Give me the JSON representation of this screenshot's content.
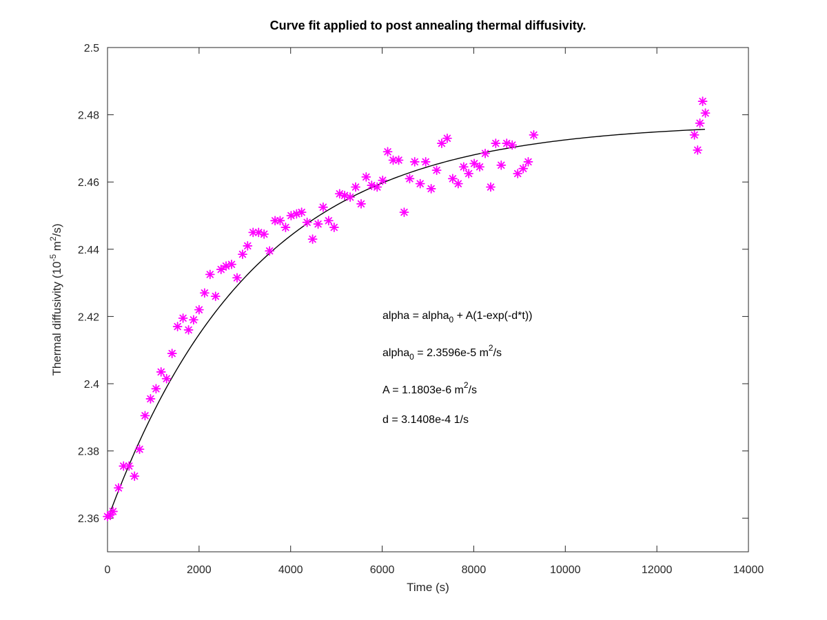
{
  "chart_data": {
    "type": "scatter",
    "title": "Curve fit applied to post annealing thermal diffusivity.",
    "xlabel": "Time (s)",
    "ylabel": {
      "base": "Thermal diffusivity (10",
      "exp": "-5",
      "mid": " m",
      "exp2": "2",
      "tail": "/s)"
    },
    "xlim": [
      0,
      14000
    ],
    "ylim": [
      2.35,
      2.5
    ],
    "xticks": [
      "0",
      "2000",
      "4000",
      "6000",
      "8000",
      "10000",
      "12000",
      "14000"
    ],
    "yticks": [
      "2.36",
      "2.38",
      "2.4",
      "2.42",
      "2.44",
      "2.46",
      "2.48",
      "2.5"
    ],
    "grid": false,
    "marker_color": "#ff00ff",
    "fit_color": "#000000",
    "fit": {
      "alpha0": 2.3596,
      "A": 0.11803,
      "d": 0.00031408,
      "x_range": [
        0,
        13050
      ]
    },
    "annotations": {
      "line1": {
        "a": "alpha = alpha",
        "sub": "0",
        "b": " + A(1-exp(-d*t))"
      },
      "line2": {
        "a": "alpha",
        "sub": "0",
        "b": " = 2.3596e-5 m",
        "sup": "2",
        "c": "/s"
      },
      "line3": {
        "a": "A = 1.1803e-6 m",
        "sup": "2",
        "b": "/s"
      },
      "line4": {
        "a": "d = 3.1408e-4 1/s"
      }
    },
    "x": [
      0,
      60,
      120,
      240,
      350,
      470,
      590,
      700,
      820,
      940,
      1060,
      1170,
      1290,
      1410,
      1530,
      1650,
      1770,
      1880,
      2000,
      2120,
      2240,
      2360,
      2480,
      2590,
      2710,
      2830,
      2950,
      3060,
      3180,
      3300,
      3420,
      3540,
      3660,
      3770,
      3890,
      4010,
      4130,
      4240,
      4360,
      4480,
      4600,
      4710,
      4830,
      4950,
      5070,
      5180,
      5300,
      5420,
      5540,
      5650,
      5770,
      5890,
      6010,
      6120,
      6240,
      6360,
      6480,
      6600,
      6710,
      6830,
      6950,
      7070,
      7190,
      7300,
      7420,
      7540,
      7660,
      7780,
      7890,
      8010,
      8130,
      8250,
      8370,
      8480,
      8600,
      8720,
      8840,
      8960,
      9080,
      9190,
      9310,
      12820,
      12890,
      12940,
      13000,
      13060
    ],
    "y": [
      2.3605,
      2.361,
      2.362,
      2.369,
      2.3755,
      2.3755,
      2.3725,
      2.3805,
      2.3905,
      2.3955,
      2.3985,
      2.4035,
      2.4015,
      2.409,
      2.417,
      2.4195,
      2.416,
      2.419,
      2.422,
      2.427,
      2.4325,
      2.426,
      2.434,
      2.435,
      2.4355,
      2.4315,
      2.4385,
      2.441,
      2.445,
      2.445,
      2.4445,
      2.4395,
      2.4485,
      2.4485,
      2.4465,
      2.45,
      2.4505,
      2.451,
      2.448,
      2.443,
      2.4475,
      2.4525,
      2.4485,
      2.4465,
      2.4565,
      2.456,
      2.4555,
      2.4585,
      2.4535,
      2.4615,
      2.459,
      2.4585,
      2.4605,
      2.469,
      2.4665,
      2.4665,
      2.451,
      2.461,
      2.466,
      2.4595,
      2.466,
      2.458,
      2.4635,
      2.4715,
      2.473,
      2.461,
      2.4595,
      2.4645,
      2.4625,
      2.4655,
      2.4645,
      2.4685,
      2.4585,
      2.4715,
      2.465,
      2.4715,
      2.471,
      2.4625,
      2.464,
      2.466,
      2.474,
      2.474,
      2.4695,
      2.4775,
      2.484,
      2.4805
    ]
  }
}
